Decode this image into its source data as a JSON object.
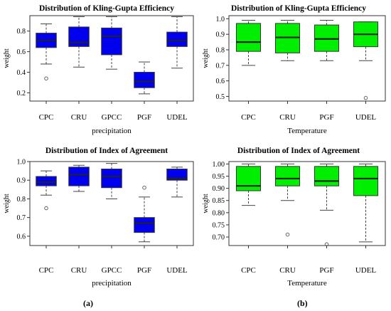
{
  "captions": {
    "a": "(a)",
    "b": "(b)"
  },
  "chart_data": [
    {
      "type": "box",
      "title": "Distribution of Kling-Gupta Efficiency",
      "xlabel": "precipitation",
      "ylabel": "weight",
      "ylim": [
        0.12,
        0.95
      ],
      "yticks": [
        "0.2",
        "0.4",
        "0.6",
        "0.8"
      ],
      "yticks_values": [
        0.2,
        0.4,
        0.6,
        0.8
      ],
      "box_color": "#0000ee",
      "categories": [
        "CPC",
        "CRU",
        "GPCC",
        "PGF",
        "UDEL"
      ],
      "boxes": [
        {
          "label": "CPC",
          "whislo": 0.48,
          "q1": 0.64,
          "med": 0.71,
          "q3": 0.78,
          "whishi": 0.87,
          "fliers": [
            0.34
          ]
        },
        {
          "label": "CRU",
          "whislo": 0.45,
          "q1": 0.65,
          "med": 0.69,
          "q3": 0.84,
          "whishi": 0.94,
          "fliers": []
        },
        {
          "label": "GPCC",
          "whislo": 0.43,
          "q1": 0.57,
          "med": 0.75,
          "q3": 0.83,
          "whishi": 0.94,
          "fliers": []
        },
        {
          "label": "PGF",
          "whislo": 0.19,
          "q1": 0.25,
          "med": 0.31,
          "q3": 0.4,
          "whishi": 0.5,
          "fliers": []
        },
        {
          "label": "UDEL",
          "whislo": 0.44,
          "q1": 0.65,
          "med": 0.71,
          "q3": 0.79,
          "whishi": 0.94,
          "fliers": []
        }
      ]
    },
    {
      "type": "box",
      "title": "Distribution of Kling-Gupta Efficiency",
      "xlabel": "Temperature",
      "ylabel": "weight",
      "ylim": [
        0.47,
        1.02
      ],
      "yticks": [
        "0.5",
        "0.6",
        "0.7",
        "0.8",
        "0.9",
        "1.0"
      ],
      "yticks_values": [
        0.5,
        0.6,
        0.7,
        0.8,
        0.9,
        1.0
      ],
      "box_color": "#00ee00",
      "categories": [
        "CPC",
        "CRU",
        "PGF",
        "UDEL"
      ],
      "boxes": [
        {
          "label": "CPC",
          "whislo": 0.7,
          "q1": 0.79,
          "med": 0.85,
          "q3": 0.97,
          "whishi": 0.99,
          "fliers": []
        },
        {
          "label": "CRU",
          "whislo": 0.73,
          "q1": 0.78,
          "med": 0.88,
          "q3": 0.97,
          "whishi": 0.99,
          "fliers": []
        },
        {
          "label": "PGF",
          "whislo": 0.73,
          "q1": 0.79,
          "med": 0.87,
          "q3": 0.96,
          "whishi": 0.99,
          "fliers": []
        },
        {
          "label": "UDEL",
          "whislo": 0.73,
          "q1": 0.82,
          "med": 0.9,
          "q3": 0.98,
          "whishi": 0.98,
          "fliers": [
            0.49
          ]
        }
      ]
    },
    {
      "type": "box",
      "title": "Distribution of Index of Agreement",
      "xlabel": "precipitation",
      "ylabel": "weight",
      "ylim": [
        0.55,
        1.0
      ],
      "yticks": [
        "0.6",
        "0.7",
        "0.8",
        "0.9",
        "1.0"
      ],
      "yticks_values": [
        0.6,
        0.7,
        0.8,
        0.9,
        1.0
      ],
      "box_color": "#0000ee",
      "categories": [
        "CPC",
        "CRU",
        "GPCC",
        "PGF",
        "UDEL"
      ],
      "boxes": [
        {
          "label": "CPC",
          "whislo": 0.82,
          "q1": 0.87,
          "med": 0.89,
          "q3": 0.92,
          "whishi": 0.95,
          "fliers": [
            0.75
          ]
        },
        {
          "label": "CRU",
          "whislo": 0.84,
          "q1": 0.87,
          "med": 0.93,
          "q3": 0.97,
          "whishi": 0.98,
          "fliers": []
        },
        {
          "label": "GPCC",
          "whislo": 0.8,
          "q1": 0.86,
          "med": 0.92,
          "q3": 0.96,
          "whishi": 0.99,
          "fliers": []
        },
        {
          "label": "PGF",
          "whislo": 0.57,
          "q1": 0.62,
          "med": 0.67,
          "q3": 0.7,
          "whishi": 0.81,
          "fliers": [
            0.86
          ]
        },
        {
          "label": "UDEL",
          "whislo": 0.81,
          "q1": 0.9,
          "med": 0.91,
          "q3": 0.96,
          "whishi": 0.97,
          "fliers": []
        }
      ]
    },
    {
      "type": "box",
      "title": "Distribution of Index of Agreement",
      "xlabel": "Temperature",
      "ylabel": "weight",
      "ylim": [
        0.665,
        1.01
      ],
      "yticks": [
        "0.70",
        "0.75",
        "0.80",
        "0.85",
        "0.90",
        "0.95",
        "1.00"
      ],
      "yticks_values": [
        0.7,
        0.75,
        0.8,
        0.85,
        0.9,
        0.95,
        1.0
      ],
      "box_color": "#00ee00",
      "categories": [
        "CPC",
        "CRU",
        "PGF",
        "UDEL"
      ],
      "boxes": [
        {
          "label": "CPC",
          "whislo": 0.83,
          "q1": 0.89,
          "med": 0.91,
          "q3": 0.99,
          "whishi": 1.0,
          "fliers": []
        },
        {
          "label": "CRU",
          "whislo": 0.85,
          "q1": 0.91,
          "med": 0.94,
          "q3": 0.99,
          "whishi": 1.0,
          "fliers": [
            0.71
          ]
        },
        {
          "label": "PGF",
          "whislo": 0.81,
          "q1": 0.91,
          "med": 0.93,
          "q3": 0.99,
          "whishi": 1.0,
          "fliers": [
            0.67
          ]
        },
        {
          "label": "UDEL",
          "whislo": 0.68,
          "q1": 0.87,
          "med": 0.94,
          "q3": 0.99,
          "whishi": 1.0,
          "fliers": []
        }
      ]
    }
  ]
}
